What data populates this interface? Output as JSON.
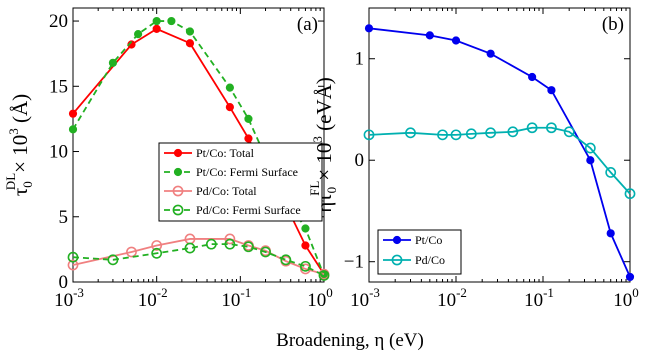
{
  "xlabel": "Broadening, η (eV)",
  "chart_data": [
    {
      "type": "line",
      "panel_label": "(a)",
      "ylabel_parts": {
        "main": "τ",
        "sup": "DL",
        "sub": "0",
        "rest": "× 10",
        "exp": "3",
        "unit": " (Å)"
      },
      "xscale": "log",
      "xlim": [
        0.001,
        1
      ],
      "ylim": [
        0,
        21
      ],
      "xticks": [
        0.001,
        0.01,
        0.1,
        1
      ],
      "xtick_labels": [
        {
          "b": "10",
          "e": "-3"
        },
        {
          "b": "10",
          "e": "-2"
        },
        {
          "b": "10",
          "e": "-1"
        },
        {
          "b": "10",
          "e": "0"
        }
      ],
      "yticks": [
        0,
        5,
        10,
        15,
        20
      ],
      "ytick_labels": [
        "0",
        "5",
        "10",
        "15",
        "20"
      ],
      "legend_position": "middle-right",
      "series": [
        {
          "name": "Pt/Co: Total",
          "color": "#ff0000",
          "marker": "filled-circle",
          "linestyle": "solid",
          "x": [
            0.001,
            0.005,
            0.01,
            0.025,
            0.075,
            0.125,
            0.2,
            0.35,
            0.6,
            1.0
          ],
          "y": [
            12.9,
            18.2,
            19.4,
            18.3,
            13.4,
            11.0,
            8.4,
            5.9,
            2.8,
            0.6
          ]
        },
        {
          "name": "Pt/Co: Fermi Surface",
          "color": "#22b022",
          "marker": "filled-circle",
          "linestyle": "dashed",
          "x": [
            0.001,
            0.003,
            0.006,
            0.01,
            0.015,
            0.025,
            0.075,
            0.125,
            0.2,
            0.35,
            0.6,
            1.0
          ],
          "y": [
            11.7,
            16.8,
            19.0,
            20.0,
            20.0,
            19.2,
            14.9,
            12.5,
            9.6,
            6.5,
            4.1,
            0.5
          ]
        },
        {
          "name": "Pd/Co: Total",
          "color": "#f08080",
          "marker": "open-circle",
          "linestyle": "solid",
          "x": [
            0.001,
            0.005,
            0.01,
            0.025,
            0.075,
            0.125,
            0.2,
            0.35,
            0.6,
            1.0
          ],
          "y": [
            1.3,
            2.3,
            2.8,
            3.3,
            3.3,
            2.8,
            2.4,
            1.6,
            1.0,
            0.6
          ]
        },
        {
          "name": "Pd/Co: Fermi Surface",
          "color": "#22b022",
          "marker": "open-circle",
          "linestyle": "dashed",
          "x": [
            0.001,
            0.003,
            0.01,
            0.025,
            0.045,
            0.075,
            0.125,
            0.2,
            0.35,
            0.6,
            1.0
          ],
          "y": [
            1.9,
            1.7,
            2.2,
            2.6,
            2.9,
            2.9,
            2.7,
            2.3,
            1.7,
            1.2,
            0.5
          ]
        }
      ]
    },
    {
      "type": "line",
      "panel_label": "(b)",
      "ylabel_parts": {
        "pre": "η",
        "main": "τ",
        "sup": "FL",
        "sub": "0",
        "rest": "× 10",
        "exp": "3",
        "unit": " (eVÅ)"
      },
      "xscale": "log",
      "xlim": [
        0.001,
        1
      ],
      "ylim": [
        -1.2,
        1.5
      ],
      "xticks": [
        0.001,
        0.01,
        0.1,
        1
      ],
      "xtick_labels": [
        {
          "b": "10",
          "e": "-3"
        },
        {
          "b": "10",
          "e": "-2"
        },
        {
          "b": "10",
          "e": "-1"
        },
        {
          "b": "10",
          "e": "0"
        }
      ],
      "yticks": [
        -1,
        0,
        1
      ],
      "ytick_labels": [
        "−1",
        "0",
        "1"
      ],
      "legend_position": "bottom-left",
      "series": [
        {
          "name": "Pt/Co",
          "color": "#0000ee",
          "marker": "filled-circle",
          "linestyle": "solid",
          "x": [
            0.001,
            0.005,
            0.01,
            0.025,
            0.075,
            0.125,
            0.35,
            0.6,
            1.0
          ],
          "y": [
            1.3,
            1.23,
            1.18,
            1.05,
            0.82,
            0.69,
            0.0,
            -0.72,
            -1.15
          ]
        },
        {
          "name": "Pd/Co",
          "color": "#00b0b0",
          "marker": "open-circle",
          "linestyle": "solid",
          "x": [
            0.001,
            0.003,
            0.007,
            0.01,
            0.015,
            0.025,
            0.045,
            0.075,
            0.125,
            0.2,
            0.35,
            0.6,
            1.0
          ],
          "y": [
            0.25,
            0.27,
            0.25,
            0.25,
            0.26,
            0.27,
            0.28,
            0.32,
            0.32,
            0.28,
            0.12,
            -0.12,
            -0.33
          ]
        }
      ]
    }
  ]
}
